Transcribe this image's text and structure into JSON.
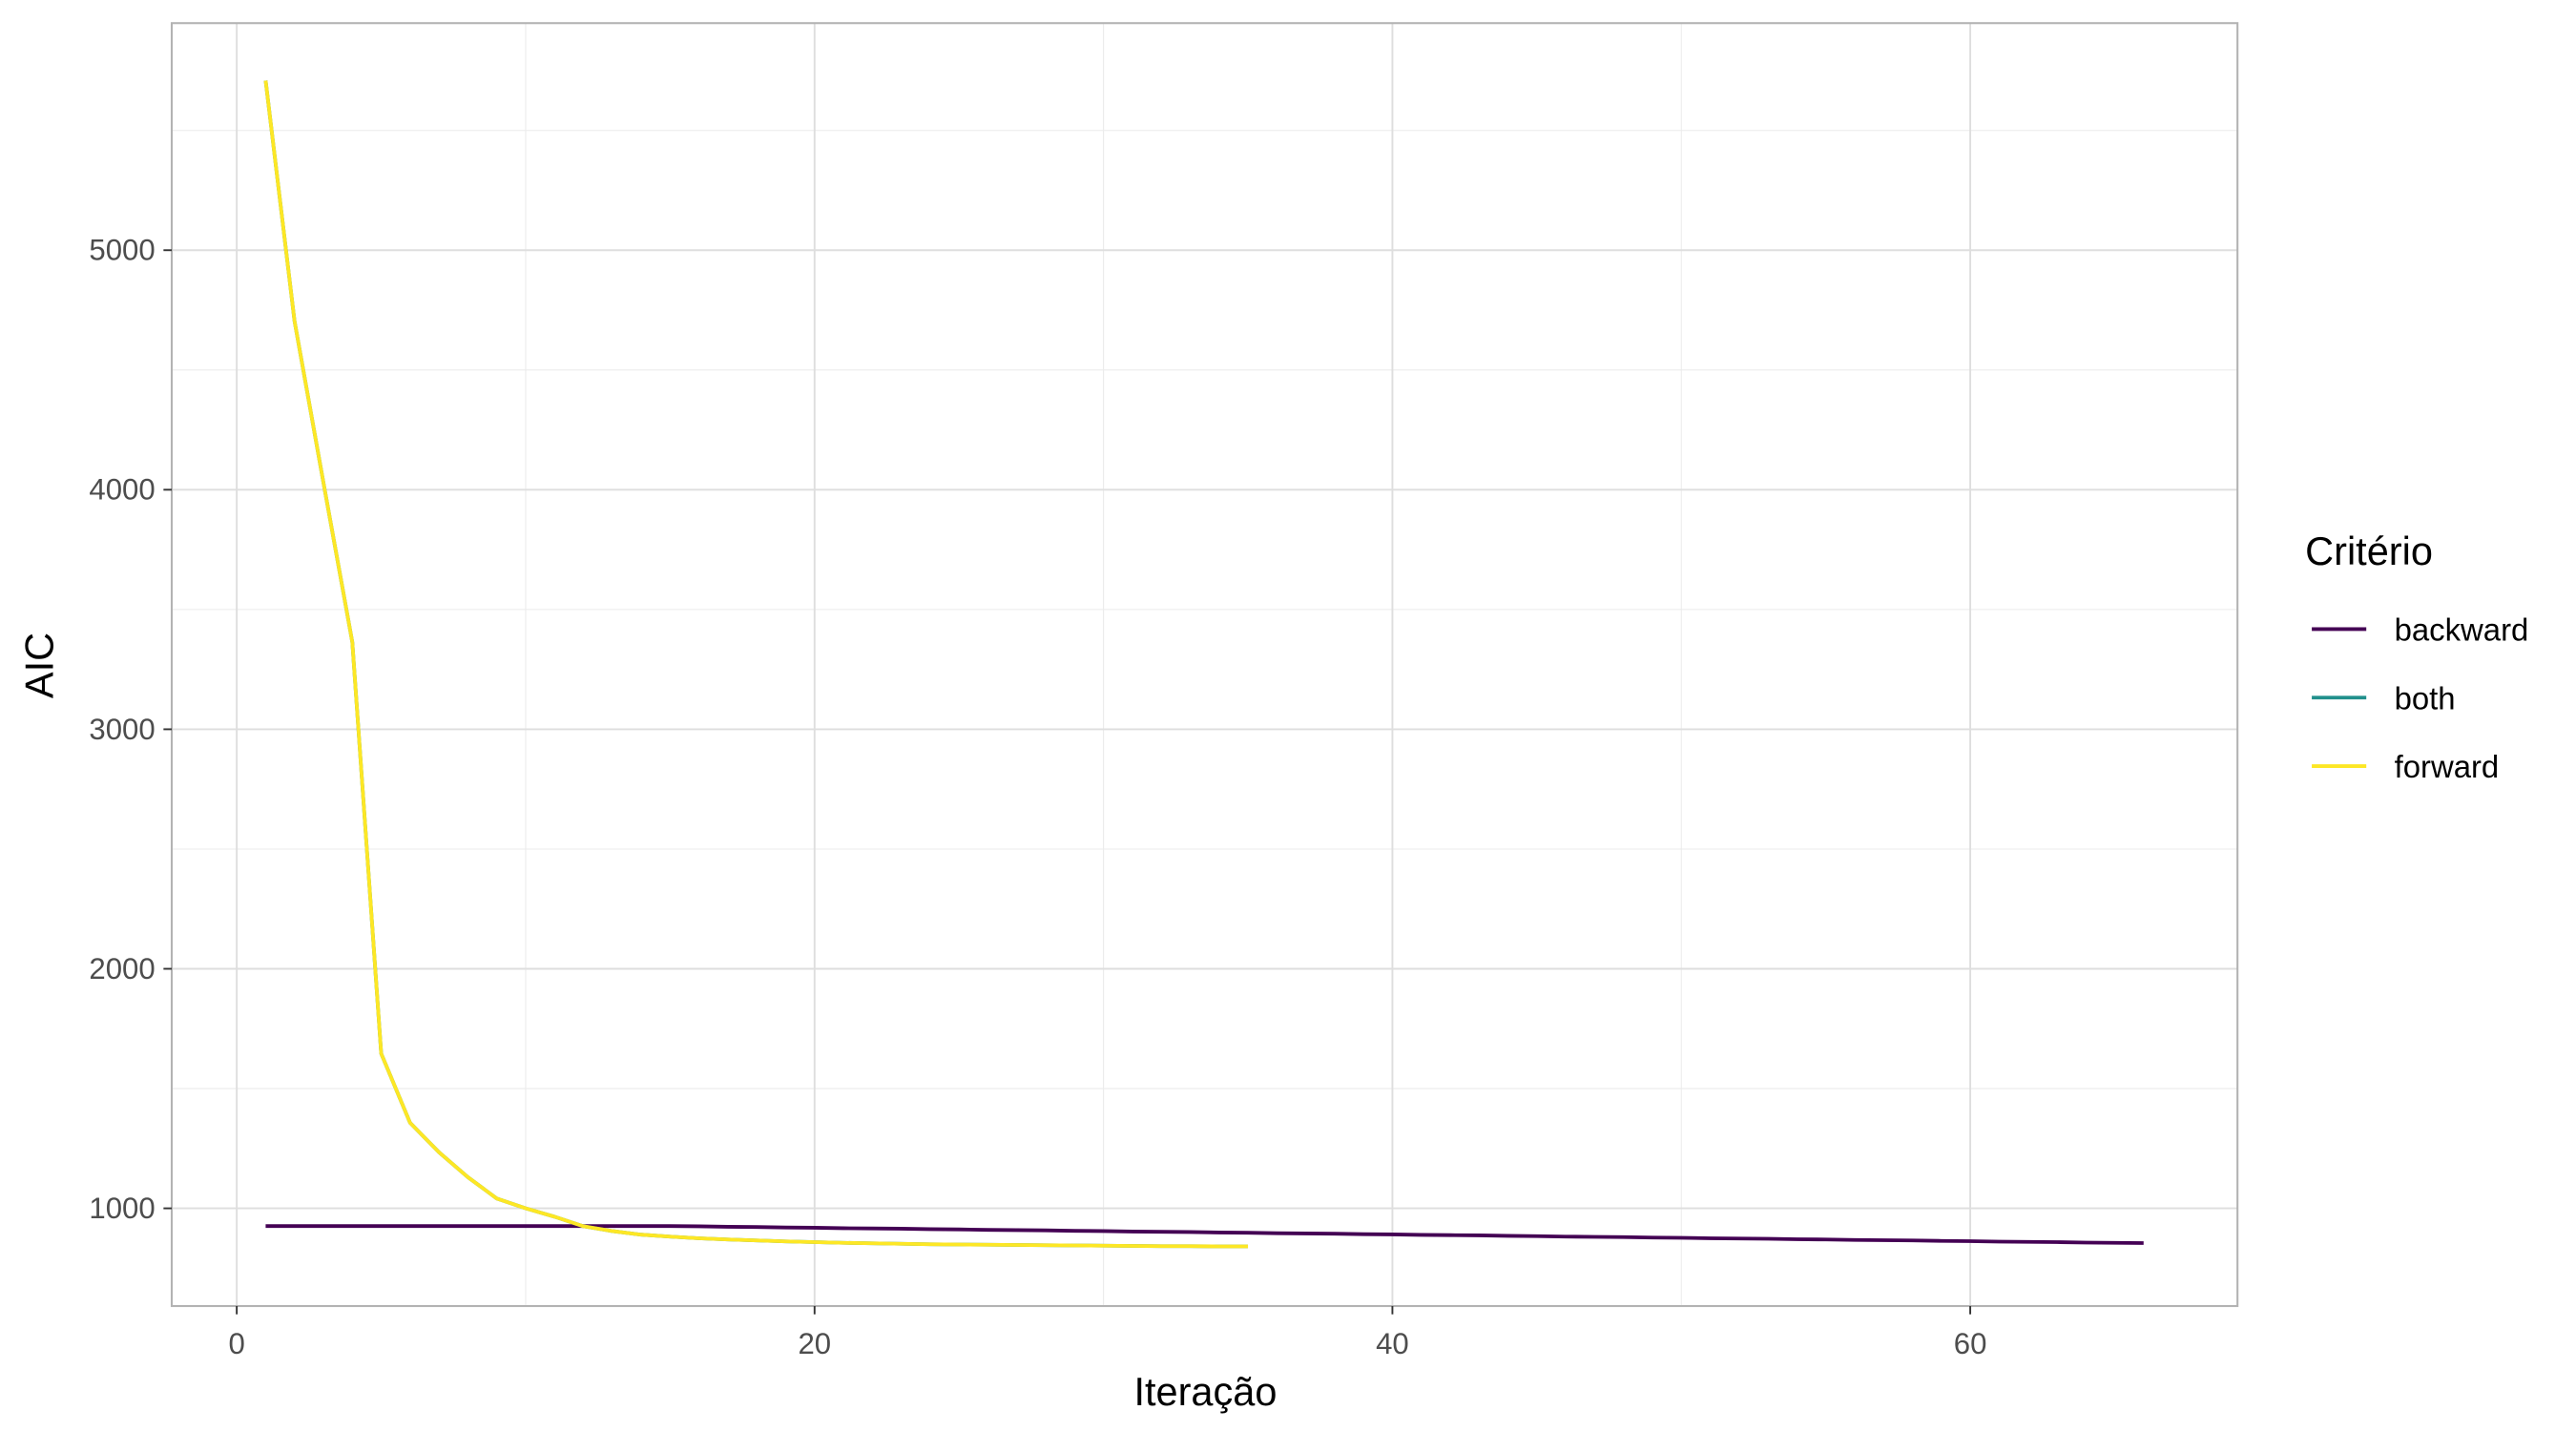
{
  "chart_data": {
    "type": "line",
    "x_label": "Iteração",
    "y_label": "AIC",
    "legend_title": "Critério",
    "legend_position": "right",
    "xlim": [
      -2.25,
      69.25
    ],
    "xticks": [
      0,
      20,
      40,
      60
    ],
    "ylim": [
      592,
      5948
    ],
    "yticks": [
      1000,
      2000,
      3000,
      4000,
      5000
    ],
    "grid": true,
    "series": [
      {
        "name": "backward",
        "color": "#440154",
        "x": [
          1,
          2,
          3,
          4,
          5,
          6,
          7,
          8,
          9,
          10,
          11,
          12,
          13,
          14,
          15,
          16,
          17,
          18,
          19,
          20,
          21,
          22,
          23,
          24,
          25,
          26,
          27,
          28,
          29,
          30,
          31,
          32,
          33,
          34,
          35,
          36,
          37,
          38,
          39,
          40,
          41,
          42,
          43,
          44,
          45,
          46,
          47,
          48,
          49,
          50,
          51,
          52,
          53,
          54,
          55,
          56,
          57,
          58,
          59,
          60,
          61,
          62,
          63,
          64,
          65,
          66
        ],
        "values": [
          926,
          926,
          926,
          926,
          926,
          926,
          926,
          926,
          926,
          926,
          926,
          926,
          926,
          926,
          926,
          925,
          923,
          922,
          920,
          919,
          917,
          916,
          915,
          913,
          912,
          910,
          909,
          908,
          906,
          905,
          903,
          902,
          901,
          899,
          898,
          896,
          895,
          894,
          892,
          891,
          889,
          888,
          887,
          885,
          884,
          882,
          881,
          880,
          878,
          877,
          875,
          874,
          873,
          871,
          870,
          868,
          867,
          866,
          864,
          863,
          861,
          860,
          859,
          857,
          856,
          855
        ]
      },
      {
        "name": "both",
        "color": "#21908C",
        "x": [
          1,
          2,
          3,
          4,
          5,
          6,
          7,
          8,
          9,
          10,
          11,
          12,
          13,
          14,
          15,
          16,
          17,
          18,
          19,
          20,
          21,
          22,
          23,
          24,
          25,
          26,
          27,
          28,
          29,
          30,
          31,
          32,
          33,
          34,
          35
        ],
        "values": [
          5708,
          4704,
          4030,
          3364,
          1646,
          1357,
          1234,
          1130,
          1041,
          1000,
          965,
          925,
          905,
          890,
          882,
          875,
          870,
          866,
          862,
          859,
          856,
          854,
          852,
          850,
          849,
          848,
          847,
          846,
          845,
          844,
          843,
          842,
          842,
          841,
          841
        ]
      },
      {
        "name": "forward",
        "color": "#FDE725",
        "x": [
          1,
          2,
          3,
          4,
          5,
          6,
          7,
          8,
          9,
          10,
          11,
          12,
          13,
          14,
          15,
          16,
          17,
          18,
          19,
          20,
          21,
          22,
          23,
          24,
          25,
          26,
          27,
          28,
          29,
          30,
          31,
          32,
          33,
          34,
          35
        ],
        "values": [
          5708,
          4704,
          4030,
          3364,
          1646,
          1357,
          1234,
          1130,
          1041,
          1000,
          965,
          925,
          905,
          890,
          882,
          875,
          870,
          866,
          862,
          859,
          856,
          854,
          852,
          850,
          849,
          848,
          847,
          846,
          845,
          844,
          843,
          842,
          842,
          841,
          841
        ]
      }
    ]
  }
}
